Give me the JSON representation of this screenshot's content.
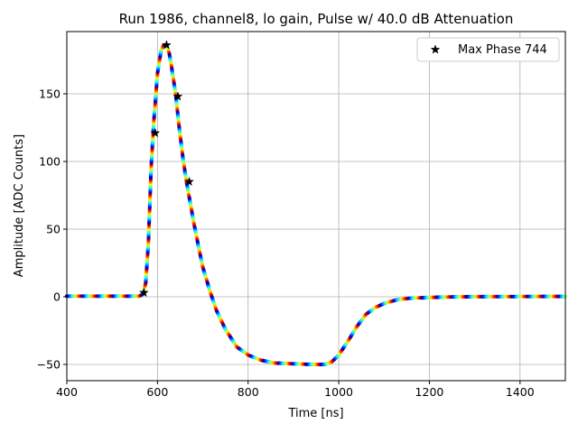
{
  "chart_data": {
    "type": "scatter",
    "title": "Run 1986, channel8, lo gain, Pulse w/ 40.0 dB Attenuation",
    "xlabel": "Time [ns]",
    "ylabel": "Amplitude [ADC Counts]",
    "xlim": [
      400,
      1500
    ],
    "ylim": [
      -62,
      196
    ],
    "xticks": [
      400,
      600,
      800,
      1000,
      1200,
      1400
    ],
    "yticks": [
      -50,
      0,
      50,
      100,
      150
    ],
    "grid": true,
    "legend_position": "top-right",
    "colormap": "jet",
    "pulse_curve": {
      "x": [
        400,
        560,
        568,
        574,
        580,
        586,
        592,
        600,
        608,
        614,
        620,
        626,
        632,
        640,
        648,
        656,
        664,
        672,
        680,
        690,
        700,
        715,
        730,
        750,
        775,
        800,
        830,
        860,
        900,
        940,
        970,
        985,
        1000,
        1020,
        1040,
        1060,
        1080,
        1100,
        1130,
        1160,
        1200,
        1260,
        1500
      ],
      "y": [
        0.5,
        0.5,
        2,
        10,
        40,
        95,
        130,
        165,
        182,
        186,
        186,
        180,
        168,
        150,
        125,
        103,
        85,
        70,
        55,
        38,
        22,
        5,
        -10,
        -24,
        -37,
        -43,
        -47,
        -49,
        -49.5,
        -50,
        -50,
        -48,
        -43,
        -33,
        -22,
        -13,
        -8,
        -5,
        -2,
        -1,
        -0.5,
        0,
        0.3
      ]
    },
    "series": [
      {
        "name": "Max Phase 744",
        "marker": "star",
        "color": "#000000",
        "x": [
          570,
          595,
          620,
          645,
          670
        ],
        "y": [
          3,
          121,
          186,
          148,
          85
        ]
      }
    ]
  }
}
